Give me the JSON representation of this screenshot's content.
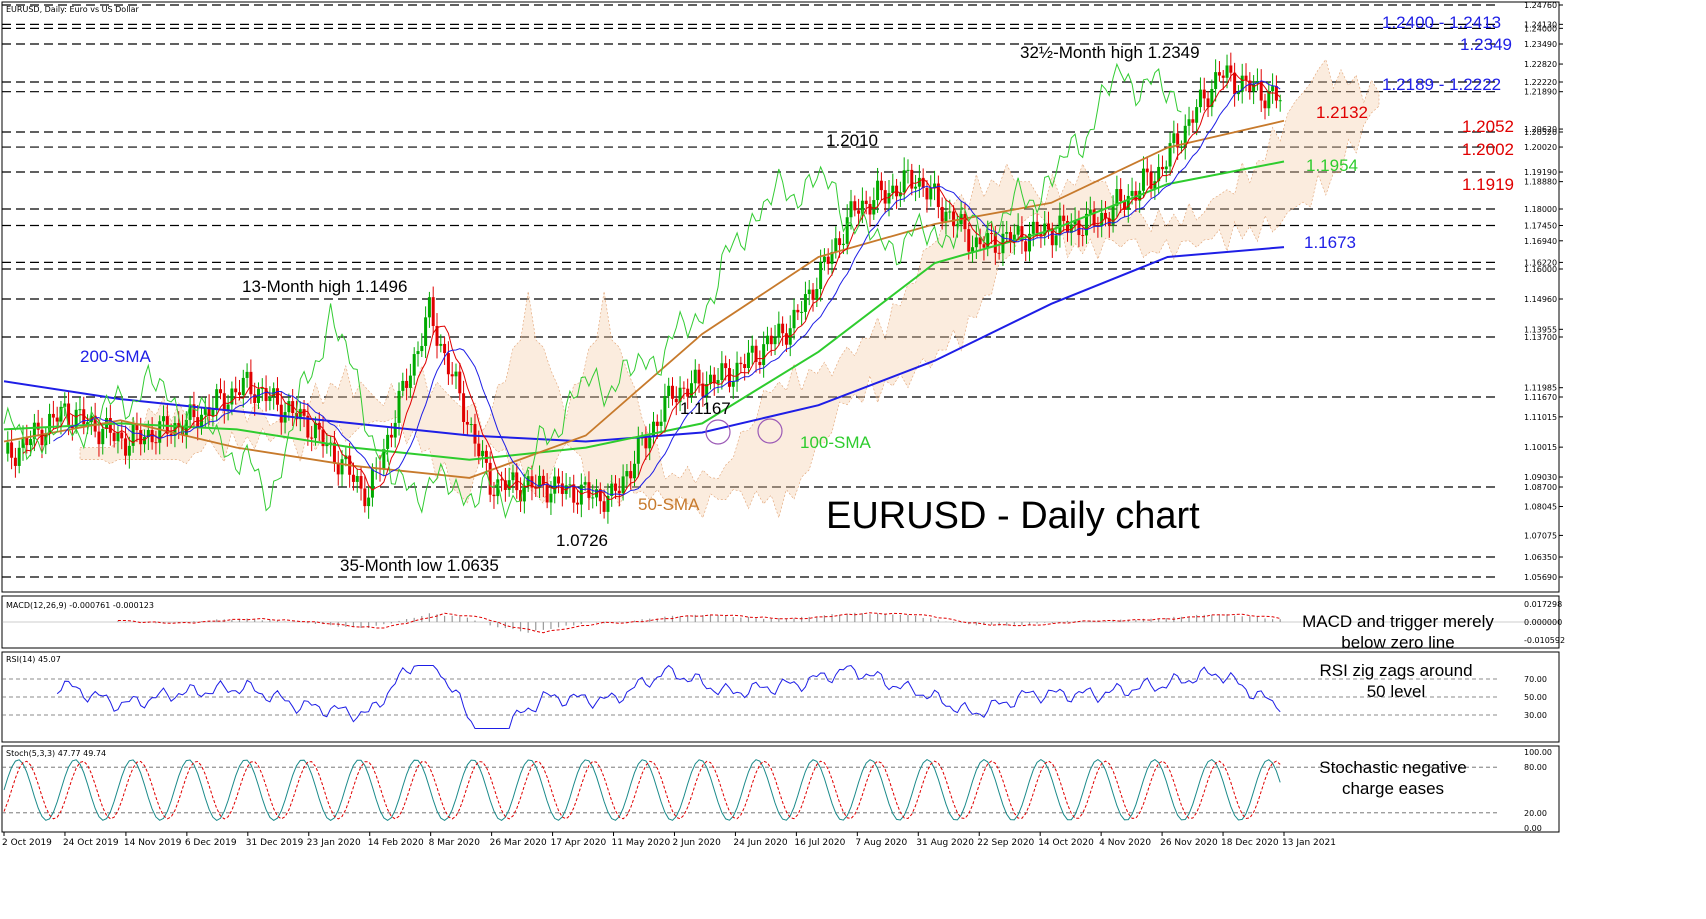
{
  "chart_data": {
    "type": "candlestick",
    "header": "EURUSD, Daily: Euro vs US Dollar",
    "title": "EURUSD - Daily chart",
    "symbol": "EURUSD",
    "timeframe": "Daily",
    "ylim": [
      1.0525,
      1.2476
    ],
    "grid": false,
    "colors": {
      "bull": "#00aa00",
      "bear": "#e00000",
      "sma200": "#1e1ee6",
      "sma100": "#2ecc2e",
      "sma50": "#c77a2c",
      "tenkan": "#e00000",
      "kijun": "#1e1ee6",
      "chikou": "#33cc33",
      "support": "#e00000",
      "resistance": "#1e1ee6"
    },
    "x_dates": [
      "2 Oct 2019",
      "24 Oct 2019",
      "14 Nov 2019",
      "6 Dec 2019",
      "31 Dec 2019",
      "23 Jan 2020",
      "14 Feb 2020",
      "8 Mar 2020",
      "26 Mar 2020",
      "17 Apr 2020",
      "11 May 2020",
      "2 Jun 2020",
      "24 Jun 2020",
      "16 Jul 2020",
      "7 Aug 2020",
      "31 Aug 2020",
      "22 Sep 2020",
      "14 Oct 2020",
      "4 Nov 2020",
      "26 Nov 2020",
      "18 Dec 2020",
      "13 Jan 2021"
    ],
    "y_ticks": [
      "1.24760",
      "1.24130",
      "1.24000",
      "1.23490",
      "1.22820",
      "1.22220",
      "1.21890",
      "1.20620",
      "1.20520",
      "1.20020",
      "1.19190",
      "1.18880",
      "1.18000",
      "1.17450",
      "1.16940",
      "1.16220",
      "1.16000",
      "1.14960",
      "1.13955",
      "1.13700",
      "1.11985",
      "1.11670",
      "1.11015",
      "1.10015",
      "1.09030",
      "1.08700",
      "1.08045",
      "1.07075",
      "1.06350",
      "1.05690"
    ],
    "hlines": [
      1.2476,
      1.2413,
      1.24,
      1.2349,
      1.2222,
      1.2189,
      1.2052,
      1.2002,
      1.1919,
      1.18,
      1.1745,
      1.1622,
      1.16,
      1.1496,
      1.137,
      1.1167,
      1.087,
      1.0635,
      1.0569
    ],
    "key_points": [
      {
        "date": "2 Oct 2019",
        "close": 1.096
      },
      {
        "date": "24 Oct 2019",
        "close": 1.112
      },
      {
        "date": "14 Nov 2019",
        "close": 1.102
      },
      {
        "date": "6 Dec 2019",
        "close": 1.108
      },
      {
        "date": "31 Dec 2019",
        "close": 1.121
      },
      {
        "date": "23 Jan 2020",
        "close": 1.108
      },
      {
        "date": "14 Feb 2020",
        "close": 1.084
      },
      {
        "date": "8 Mar 2020",
        "close": 1.145
      },
      {
        "date": "26 Mar 2020",
        "close": 1.088
      },
      {
        "date": "17 Apr 2020",
        "close": 1.087
      },
      {
        "date": "11 May 2020",
        "close": 1.083
      },
      {
        "date": "2 Jun 2020",
        "close": 1.118
      },
      {
        "date": "24 Jun 2020",
        "close": 1.125
      },
      {
        "date": "16 Jul 2020",
        "close": 1.142
      },
      {
        "date": "7 Aug 2020",
        "close": 1.18
      },
      {
        "date": "31 Aug 2020",
        "close": 1.19
      },
      {
        "date": "22 Sep 2020",
        "close": 1.168
      },
      {
        "date": "14 Oct 2020",
        "close": 1.172
      },
      {
        "date": "4 Nov 2020",
        "close": 1.176
      },
      {
        "date": "26 Nov 2020",
        "close": 1.192
      },
      {
        "date": "18 Dec 2020",
        "close": 1.225
      },
      {
        "date": "13 Jan 2021",
        "close": 1.216
      }
    ],
    "sma200": [
      [
        0,
        1.122
      ],
      [
        5,
        1.116
      ],
      [
        10,
        1.112
      ],
      [
        15,
        1.108
      ],
      [
        20,
        1.104
      ],
      [
        25,
        1.102
      ],
      [
        30,
        1.105
      ],
      [
        35,
        1.114
      ],
      [
        40,
        1.129
      ],
      [
        45,
        1.148
      ],
      [
        50,
        1.164
      ],
      [
        55,
        1.1673
      ]
    ],
    "sma100": [
      [
        0,
        1.106
      ],
      [
        5,
        1.108
      ],
      [
        10,
        1.106
      ],
      [
        15,
        1.1
      ],
      [
        20,
        1.096
      ],
      [
        25,
        1.1
      ],
      [
        30,
        1.108
      ],
      [
        35,
        1.132
      ],
      [
        40,
        1.162
      ],
      [
        45,
        1.173
      ],
      [
        50,
        1.188
      ],
      [
        55,
        1.1954
      ]
    ],
    "sma50": [
      [
        0,
        1.102
      ],
      [
        5,
        1.109
      ],
      [
        10,
        1.1
      ],
      [
        15,
        1.094
      ],
      [
        20,
        1.09
      ],
      [
        25,
        1.104
      ],
      [
        30,
        1.138
      ],
      [
        35,
        1.164
      ],
      [
        40,
        1.175
      ],
      [
        45,
        1.182
      ],
      [
        50,
        1.2
      ],
      [
        55,
        1.209
      ]
    ],
    "annotations": [
      {
        "text": "1.2400 - 1.2413",
        "color": "#1e1ee6",
        "value": 1.2406
      },
      {
        "text": "1.2349",
        "color": "#1e1ee6",
        "value": 1.2349
      },
      {
        "text": "32½-Month high 1.2349",
        "color": "#000000",
        "value": 1.2349
      },
      {
        "text": "1.2189 - 1.2222",
        "color": "#1e1ee6",
        "value": 1.2205
      },
      {
        "text": "1.2132",
        "color": "#e00000",
        "value": 1.2132
      },
      {
        "text": "1.2052",
        "color": "#e00000",
        "value": 1.2052
      },
      {
        "text": "1.2002",
        "color": "#e00000",
        "value": 1.2002
      },
      {
        "text": "1.1954",
        "color": "#2ecc2e",
        "value": 1.1954
      },
      {
        "text": "1.1919",
        "color": "#e00000",
        "value": 1.1919
      },
      {
        "text": "1.1673",
        "color": "#1e1ee6",
        "value": 1.1673
      },
      {
        "text": "1.2010",
        "color": "#000000",
        "value": 1.201
      },
      {
        "text": "13-Month high 1.1496",
        "color": "#000000",
        "value": 1.1496
      },
      {
        "text": "200-SMA",
        "color": "#1e1ee6"
      },
      {
        "text": "1.1167",
        "color": "#000000",
        "value": 1.1167
      },
      {
        "text": "100-SMA",
        "color": "#2ecc2e"
      },
      {
        "text": "50-SMA",
        "color": "#c77a2c"
      },
      {
        "text": "1.0726",
        "color": "#000000",
        "value": 1.0726
      },
      {
        "text": "35-Month low 1.0635",
        "color": "#000000",
        "value": 1.0635
      }
    ],
    "macd": {
      "header": "MACD(12,26,9) -0.000761 -0.000123",
      "ticks": [
        "0.017298",
        "0.000000",
        "-0.010592"
      ],
      "note_line1": "MACD and trigger merely",
      "note_line2": "below zero line"
    },
    "rsi": {
      "header": "RSI(14) 45.07",
      "ticks": [
        "70.00",
        "50.00",
        "30.00"
      ],
      "levels": [
        70,
        50,
        30
      ],
      "note_line1": "RSI zig zags around",
      "note_line2": "50 level"
    },
    "stoch": {
      "header": "Stoch(5,3,3) 47.77 49.74",
      "ticks": [
        "100.00",
        "80.00",
        "20.00",
        "0.00"
      ],
      "levels": [
        80,
        20
      ],
      "note_line1": "Stochastic negative",
      "note_line2": "charge eases"
    }
  }
}
